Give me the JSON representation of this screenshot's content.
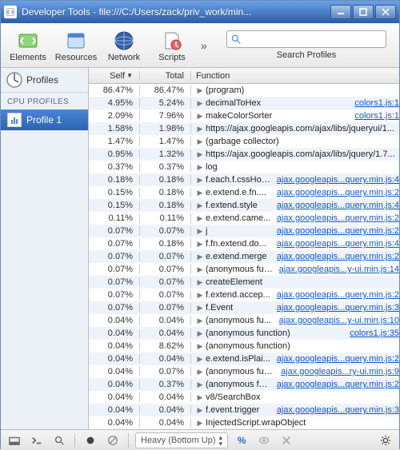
{
  "window": {
    "title": "Developer Tools - file:///C:/Users/zack/priv_work/min..."
  },
  "toolbar": {
    "items": [
      {
        "label": "Elements"
      },
      {
        "label": "Resources"
      },
      {
        "label": "Network"
      },
      {
        "label": "Scripts"
      }
    ],
    "search_placeholder": "",
    "search_label": "Search Profiles"
  },
  "sidebar": {
    "header": "Profiles",
    "section": "CPU PROFILES",
    "item": "Profile 1"
  },
  "table": {
    "headers": {
      "self": "Self",
      "total": "Total",
      "func": "Function",
      "sort": "▼"
    },
    "rows": [
      {
        "self": "86.47%",
        "total": "86.47%",
        "fn": "(program)",
        "link": ""
      },
      {
        "self": "4.95%",
        "total": "5.24%",
        "fn": "decimalToHex",
        "link": "colors1.js:1"
      },
      {
        "self": "2.09%",
        "total": "7.96%",
        "fn": "makeColorSorter",
        "link": "colors1.js:1"
      },
      {
        "self": "1.58%",
        "total": "1.98%",
        "fn": "https://ajax.googleapis.com/ajax/libs/jqueryui/1...",
        "link": ""
      },
      {
        "self": "1.47%",
        "total": "1.47%",
        "fn": "(garbage collector)",
        "link": ""
      },
      {
        "self": "0.95%",
        "total": "1.32%",
        "fn": "https://ajax.googleapis.com/ajax/libs/jquery/1.7...",
        "link": ""
      },
      {
        "self": "0.37%",
        "total": "0.37%",
        "fn": "log",
        "link": ""
      },
      {
        "self": "0.18%",
        "total": "0.18%",
        "fn": "f.each.f.cssHoo...",
        "link": "ajax.googleapis...query.min.js:4"
      },
      {
        "self": "0.15%",
        "total": "0.18%",
        "fn": "e.extend.e.fn....",
        "link": "ajax.googleapis...query.min.js:2"
      },
      {
        "self": "0.15%",
        "total": "0.18%",
        "fn": "f.extend.style",
        "link": "ajax.googleapis...query.min.js:4"
      },
      {
        "self": "0.11%",
        "total": "0.11%",
        "fn": "e.extend.came...",
        "link": "ajax.googleapis...query.min.js:2"
      },
      {
        "self": "0.07%",
        "total": "0.07%",
        "fn": "j",
        "link": "ajax.googleapis...query.min.js:2"
      },
      {
        "self": "0.07%",
        "total": "0.18%",
        "fn": "f.fn.extend.do...",
        "link": "ajax.googleapis...query.min.js:4"
      },
      {
        "self": "0.07%",
        "total": "0.07%",
        "fn": "e.extend.merge",
        "link": "ajax.googleapis...query.min.js:2"
      },
      {
        "self": "0.07%",
        "total": "0.07%",
        "fn": "(anonymous fun...",
        "link": "ajax.googleapis...y-ui.min.js:14"
      },
      {
        "self": "0.07%",
        "total": "0.07%",
        "fn": "createElement",
        "link": ""
      },
      {
        "self": "0.07%",
        "total": "0.07%",
        "fn": "f.extend.accep...",
        "link": "ajax.googleapis...query.min.js:2"
      },
      {
        "self": "0.07%",
        "total": "0.07%",
        "fn": "f.Event",
        "link": "ajax.googleapis...query.min.js:3"
      },
      {
        "self": "0.04%",
        "total": "0.04%",
        "fn": "(anonymous fu...",
        "link": "ajax.googleapis...y-ui.min.js:10"
      },
      {
        "self": "0.04%",
        "total": "0.04%",
        "fn": "(anonymous function)",
        "link": "colors1.js:35"
      },
      {
        "self": "0.04%",
        "total": "8.62%",
        "fn": "(anonymous function)",
        "link": ""
      },
      {
        "self": "0.04%",
        "total": "0.04%",
        "fn": "e.extend.isPlai...",
        "link": "ajax.googleapis...query.min.js:2"
      },
      {
        "self": "0.04%",
        "total": "0.07%",
        "fn": "(anonymous fun...",
        "link": "ajax.googleapis...ry-ui.min.js:9"
      },
      {
        "self": "0.04%",
        "total": "0.37%",
        "fn": "(anonymous fun...",
        "link": "ajax.googleapis...query.min.js:2"
      },
      {
        "self": "0.04%",
        "total": "0.04%",
        "fn": "v8/SearchBox",
        "link": ""
      },
      {
        "self": "0.04%",
        "total": "0.04%",
        "fn": "f.event.trigger",
        "link": "ajax.googleapis...query.min.js:3"
      },
      {
        "self": "0.04%",
        "total": "0.04%",
        "fn": "InjectedScript.wrapObject",
        "link": ""
      },
      {
        "self": "0.04%",
        "total": "0.04%",
        "fn": "RegExp",
        "link": ""
      }
    ]
  },
  "statusbar": {
    "dropdown": "Heavy (Bottom Up)",
    "percent": "%"
  }
}
